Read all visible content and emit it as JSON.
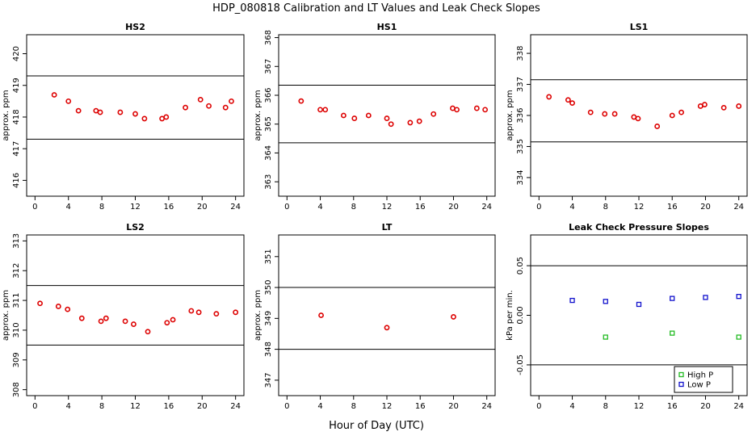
{
  "figure": {
    "title": "HDP_080818  Calibration and LT Values and Leak Check Slopes",
    "xlabel": "Hour of Day (UTC)"
  },
  "chart_data": [
    {
      "type": "scatter",
      "title": "HS2",
      "ylabel": "approx. ppm",
      "xlim": [
        -1,
        25
      ],
      "ylim": [
        415.5,
        420.6
      ],
      "xticks": [
        0,
        4,
        8,
        12,
        16,
        20,
        24
      ],
      "yticks": [
        416,
        417,
        418,
        419,
        420
      ],
      "hlines": [
        419.3,
        417.3
      ],
      "series": [
        {
          "color": "#dd0000",
          "x": [
            2.3,
            4.0,
            5.2,
            7.3,
            7.8,
            10.2,
            12.0,
            13.1,
            15.2,
            15.7,
            18.0,
            19.8,
            20.8,
            22.8,
            23.5
          ],
          "y": [
            418.7,
            418.5,
            418.2,
            418.2,
            418.15,
            418.15,
            418.1,
            417.95,
            417.95,
            418.0,
            418.3,
            418.55,
            418.35,
            418.3,
            418.5
          ]
        }
      ]
    },
    {
      "type": "scatter",
      "title": "HS1",
      "ylabel": "approx. ppm",
      "xlim": [
        -1,
        25
      ],
      "ylim": [
        362.5,
        368.1
      ],
      "xticks": [
        0,
        4,
        8,
        12,
        16,
        20,
        24
      ],
      "yticks": [
        363,
        364,
        365,
        366,
        367,
        368
      ],
      "hlines": [
        366.35,
        364.35
      ],
      "series": [
        {
          "color": "#dd0000",
          "x": [
            1.7,
            4.0,
            4.6,
            6.8,
            8.1,
            9.8,
            12.0,
            12.5,
            14.8,
            15.9,
            17.6,
            19.9,
            20.4,
            22.8,
            23.8
          ],
          "y": [
            365.8,
            365.5,
            365.5,
            365.3,
            365.2,
            365.3,
            365.2,
            365.0,
            365.05,
            365.1,
            365.35,
            365.55,
            365.5,
            365.55,
            365.5
          ]
        }
      ]
    },
    {
      "type": "scatter",
      "title": "LS1",
      "ylabel": "approx. ppm",
      "xlim": [
        -1,
        25
      ],
      "ylim": [
        333.4,
        338.6
      ],
      "xticks": [
        0,
        4,
        8,
        12,
        16,
        20,
        24
      ],
      "yticks": [
        334,
        335,
        336,
        337,
        338
      ],
      "hlines": [
        337.15,
        335.15
      ],
      "series": [
        {
          "color": "#dd0000",
          "x": [
            1.2,
            3.5,
            4.0,
            6.2,
            7.9,
            9.1,
            11.4,
            11.9,
            14.2,
            16.0,
            17.1,
            19.4,
            19.9,
            22.2,
            24.0
          ],
          "y": [
            336.6,
            336.5,
            336.4,
            336.1,
            336.05,
            336.05,
            335.95,
            335.9,
            335.65,
            336.0,
            336.1,
            336.3,
            336.35,
            336.25,
            336.3
          ]
        }
      ]
    },
    {
      "type": "scatter",
      "title": "LS2",
      "ylabel": "approx. ppm",
      "xlim": [
        -1,
        25
      ],
      "ylim": [
        307.8,
        313.2
      ],
      "xticks": [
        0,
        4,
        8,
        12,
        16,
        20,
        24
      ],
      "yticks": [
        308,
        309,
        310,
        311,
        312,
        313
      ],
      "hlines": [
        311.5,
        309.5
      ],
      "series": [
        {
          "color": "#dd0000",
          "x": [
            0.6,
            2.8,
            3.9,
            5.6,
            7.9,
            8.5,
            10.8,
            11.8,
            13.5,
            15.8,
            16.5,
            18.7,
            19.6,
            21.7,
            24.0
          ],
          "y": [
            310.9,
            310.8,
            310.7,
            310.4,
            310.3,
            310.4,
            310.3,
            310.2,
            309.95,
            310.25,
            310.35,
            310.65,
            310.6,
            310.55,
            310.6
          ]
        }
      ]
    },
    {
      "type": "scatter",
      "title": "LT",
      "ylabel": "approx. ppm",
      "xlim": [
        -1,
        25
      ],
      "ylim": [
        346.5,
        351.7
      ],
      "xticks": [
        0,
        4,
        8,
        12,
        16,
        20,
        24
      ],
      "yticks": [
        347,
        348,
        349,
        350,
        351
      ],
      "hlines": [
        350.0,
        348.0
      ],
      "series": [
        {
          "color": "#dd0000",
          "x": [
            4.1,
            12.0,
            20.0
          ],
          "y": [
            349.1,
            348.7,
            349.05
          ]
        }
      ]
    },
    {
      "type": "scatter",
      "title": "Leak Check Pressure Slopes",
      "ylabel": "kPa per min.",
      "xlim": [
        -1,
        25
      ],
      "ylim": [
        -0.081,
        0.081
      ],
      "xticks": [
        0,
        4,
        8,
        12,
        16,
        20,
        24
      ],
      "yticks": [
        -0.05,
        0.0,
        0.05
      ],
      "ytick_labels": [
        "-0.05",
        "0.00",
        "0.05"
      ],
      "hlines": [
        0.05,
        -0.05
      ],
      "legend": "bottom-right",
      "series": [
        {
          "name": "High P",
          "color": "#22bb22",
          "x": [
            8.0,
            16.0,
            24.0
          ],
          "y": [
            -0.022,
            -0.018,
            -0.022
          ]
        },
        {
          "name": "Low P",
          "color": "#1111cc",
          "x": [
            4.0,
            8.0,
            12.0,
            16.0,
            20.0,
            24.0
          ],
          "y": [
            0.015,
            0.014,
            0.011,
            0.017,
            0.018,
            0.019
          ]
        }
      ]
    }
  ]
}
